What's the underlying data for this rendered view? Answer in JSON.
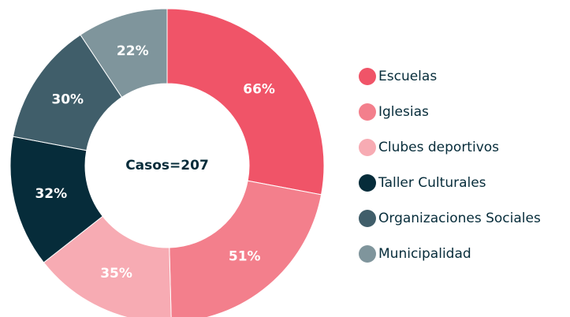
{
  "chart_data": {
    "type": "donut",
    "center_label": "Casos=207",
    "categories": [
      "Escuelas",
      "Iglesias",
      "Clubes deportivos",
      "Taller Culturales",
      "Organizaciones Sociales",
      "Municipalidad"
    ],
    "values": [
      66,
      51,
      35,
      32,
      30,
      22
    ],
    "value_labels": [
      "66%",
      "51%",
      "35%",
      "32%",
      "30%",
      "22%"
    ],
    "colors": [
      "#f05468",
      "#f37f8c",
      "#f7abb3",
      "#062c3a",
      "#405e6a",
      "#7f959c"
    ],
    "legend": "right"
  }
}
